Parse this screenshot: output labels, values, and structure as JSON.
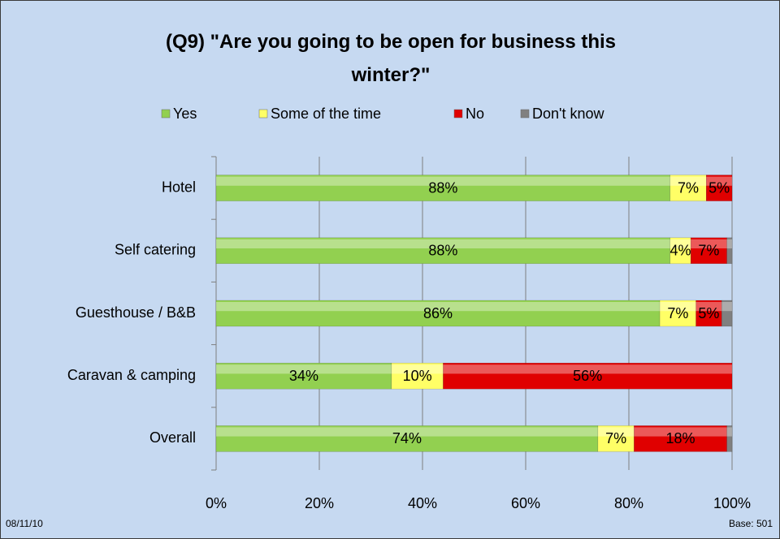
{
  "chart_data": {
    "type": "stacked_barh",
    "title": "(Q9) \"Are you going to be open for business this winter?\"",
    "categories": [
      "Hotel",
      "Self catering",
      "Guesthouse / B&B",
      "Caravan & camping",
      "Overall"
    ],
    "series": [
      {
        "name": "Yes",
        "color": "#92d050",
        "values": [
          88,
          88,
          86,
          34,
          74
        ],
        "value_labels": [
          "88%",
          "88%",
          "86%",
          "34%",
          "74%"
        ]
      },
      {
        "name": "Some of the time",
        "color": "#ffff66",
        "values": [
          7,
          4,
          7,
          10,
          7
        ],
        "value_labels": [
          "7%",
          "4%",
          "7%",
          "10%",
          "7%"
        ]
      },
      {
        "name": "No",
        "color": "#e00000",
        "values": [
          5,
          7,
          5,
          56,
          18
        ],
        "value_labels": [
          "5%",
          "7%",
          "5%",
          "56%",
          "18%"
        ]
      },
      {
        "name": "Don't know",
        "color": "#808080",
        "values": [
          0,
          1,
          2,
          0,
          1
        ]
      }
    ],
    "xlim": [
      0,
      100
    ],
    "xticks": [
      {
        "value": 0,
        "label": "0%"
      },
      {
        "value": 20,
        "label": "20%"
      },
      {
        "value": 40,
        "label": "40%"
      },
      {
        "value": 60,
        "label": "60%"
      },
      {
        "value": 80,
        "label": "80%"
      },
      {
        "value": 100,
        "label": "100%"
      }
    ],
    "grid": true,
    "legend": "top",
    "date": "08/11/10",
    "base": "Base: 501"
  }
}
